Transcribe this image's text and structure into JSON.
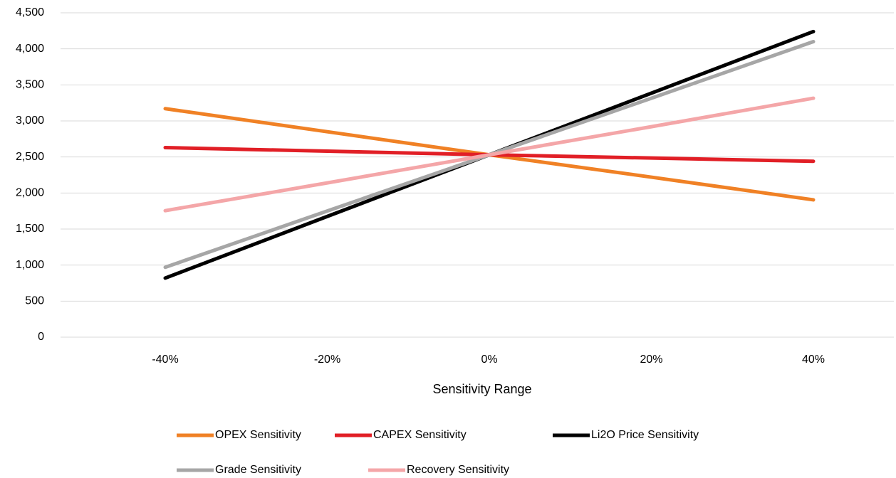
{
  "chart_data": {
    "type": "line",
    "x_label": "Sensitivity Range",
    "categories": [
      "-40%",
      "-20%",
      "0%",
      "20%",
      "40%"
    ],
    "series": [
      {
        "name": "OPEX Sensitivity",
        "color": "#f08125",
        "values": [
          3170,
          2850,
          2530,
          2220,
          1905
        ]
      },
      {
        "name": "CAPEX Sensitivity",
        "color": "#e11f26",
        "values": [
          2630,
          2580,
          2530,
          2485,
          2440
        ]
      },
      {
        "name": "Li2O Price Sensitivity",
        "color": "#000000",
        "values": [
          820,
          1675,
          2530,
          3385,
          4240
        ]
      },
      {
        "name": "Grade Sensitivity",
        "color": "#a6a6a6",
        "values": [
          970,
          1750,
          2530,
          3315,
          4100
        ]
      },
      {
        "name": "Recovery Sensitivity",
        "color": "#f4a6a8",
        "values": [
          1755,
          2140,
          2530,
          2920,
          3315
        ]
      }
    ],
    "ylim": [
      0,
      4500
    ],
    "yticks": [
      0,
      500,
      {
        "value": 1000,
        "label": "1,000"
      },
      {
        "value": 1500,
        "label": "1,500"
      },
      {
        "value": 2000,
        "label": "2,000"
      },
      {
        "value": 2500,
        "label": "2,500"
      },
      {
        "value": 3000,
        "label": "3,000"
      },
      {
        "value": 3500,
        "label": "3,500"
      },
      {
        "value": 4000,
        "label": "4,000"
      },
      {
        "value": 4500,
        "label": "4,500"
      }
    ],
    "grid": true,
    "legend": "bottom"
  }
}
